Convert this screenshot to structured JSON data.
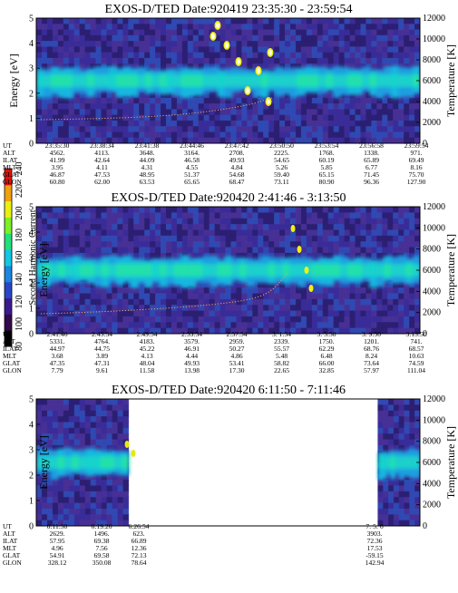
{
  "colorbar": {
    "label": "Second Harmonic Current",
    "ticks": [
      "80",
      "100",
      "120",
      "140",
      "160",
      "180",
      "200",
      "220",
      "240"
    ],
    "colors": [
      "#000000",
      "#330a4a",
      "#3a1a8f",
      "#2946c8",
      "#1a86e0",
      "#10c8e4",
      "#22e07c",
      "#7cf028",
      "#e8f010",
      "#f0a010",
      "#e81008"
    ]
  },
  "chart_data": [
    {
      "type": "heatmap",
      "title": "EXOS-D/TED   Date:920419  23:35:30 - 23:59:54",
      "ylabel": "Energy [eV]",
      "y2label": "Temperature [K]",
      "ylim": [
        0,
        5
      ],
      "y2lim": [
        0,
        12000
      ],
      "yticks": [
        "0",
        "1",
        "2",
        "3",
        "4",
        "5"
      ],
      "y2ticks": [
        "0",
        "2000",
        "4000",
        "6000",
        "8000",
        "10000",
        "12000"
      ],
      "data_extent": [
        0,
        1
      ],
      "table_rows": [
        {
          "label": "UT",
          "values": [
            "23:35:30",
            "23:38:34",
            "23:41:38",
            "23:44:46",
            "23:47:42",
            "23:50:50",
            "23:53:54",
            "23:56:58",
            "23:59:54"
          ]
        },
        {
          "label": "ALT",
          "values": [
            "4562.",
            "4113.",
            "3648.",
            "3164.",
            "2708.",
            "2225.",
            "1768.",
            "1338.",
            "971."
          ]
        },
        {
          "label": "ILAT",
          "values": [
            "41.99",
            "42.64",
            "44.09",
            "46.58",
            "49.93",
            "54.65",
            "60.19",
            "65.89",
            "69.49"
          ]
        },
        {
          "label": "MLT",
          "values": [
            "3.95",
            "4.11",
            "4.31",
            "4.55",
            "4.84",
            "5.26",
            "5.85",
            "6.77",
            "8.16"
          ]
        },
        {
          "label": "GLAT",
          "values": [
            "46.87",
            "47.53",
            "48.95",
            "51.37",
            "54.68",
            "59.40",
            "65.15",
            "71.45",
            "75.70"
          ]
        },
        {
          "label": "GLON",
          "values": [
            "60.80",
            "62.00",
            "63.53",
            "65.65",
            "68.47",
            "73.11",
            "80.90",
            "96.36",
            "127.90"
          ]
        }
      ]
    },
    {
      "type": "heatmap",
      "title": "EXOS-D/TED   Date:920420   2:41:46 - 3:13:50",
      "ylabel": "Energy [eV]",
      "y2label": "Temperature [K]",
      "ylim": [
        0,
        5
      ],
      "y2lim": [
        0,
        12000
      ],
      "yticks": [
        "0",
        "1",
        "2",
        "3",
        "4",
        "5"
      ],
      "y2ticks": [
        "0",
        "2000",
        "4000",
        "6000",
        "8000",
        "10000",
        "12000"
      ],
      "data_extent": [
        0,
        1
      ],
      "table_rows": [
        {
          "label": "UT",
          "values": [
            "2:41:46",
            "2:45:54",
            "2:49:54",
            "2:53:54",
            "2:57:54",
            "3: 1:54",
            "3: 5:50",
            "3: 9:50",
            "3:13:50"
          ]
        },
        {
          "label": "ALT",
          "values": [
            "5331.",
            "4764.",
            "4183.",
            "3579.",
            "2959.",
            "2339.",
            "1750.",
            "1201.",
            "741."
          ]
        },
        {
          "label": "ILAT",
          "values": [
            "44.97",
            "44.75",
            "45.22",
            "46.91",
            "50.27",
            "55.57",
            "62.29",
            "68.76",
            "68.57"
          ]
        },
        {
          "label": "MLT",
          "values": [
            "3.68",
            "3.89",
            "4.13",
            "4.44",
            "4.86",
            "5.48",
            "6.48",
            "8.24",
            "10.63"
          ]
        },
        {
          "label": "GLAT",
          "values": [
            "47.35",
            "47.31",
            "48.04",
            "49.93",
            "53.41",
            "58.82",
            "66.00",
            "73.64",
            "74.59"
          ]
        },
        {
          "label": "GLON",
          "values": [
            "7.79",
            "9.61",
            "11.58",
            "13.98",
            "17.30",
            "22.65",
            "32.85",
            "57.97",
            "111.04"
          ]
        }
      ]
    },
    {
      "type": "heatmap",
      "title": "EXOS-D/TED   Date:920420   6:11:50 - 7:11:46",
      "ylabel": "Energy [eV]",
      "y2label": "Temperature [K]",
      "ylim": [
        0,
        5
      ],
      "y2lim": [
        0,
        12000
      ],
      "yticks": [
        "0",
        "1",
        "2",
        "3",
        "4",
        "5"
      ],
      "y2ticks": [
        "0",
        "2000",
        "4000",
        "6000",
        "8000",
        "10000",
        "12000"
      ],
      "data_extent": [
        0,
        0.24
      ],
      "data_extent2": [
        0.89,
        1
      ],
      "table_rows": [
        {
          "label": "UT",
          "values": [
            "6:11:50",
            "6:19:26",
            "6:26:54",
            "7: 5: 6"
          ]
        },
        {
          "label": "ALT",
          "values": [
            "2629.",
            "1496.",
            "623.",
            "3903."
          ]
        },
        {
          "label": "ILAT",
          "values": [
            "57.95",
            "69.38",
            "66.89",
            "72.36"
          ]
        },
        {
          "label": "MLT",
          "values": [
            "4.96",
            "7.56",
            "12.36",
            "17.53"
          ]
        },
        {
          "label": "GLAT",
          "values": [
            "54.91",
            "69.58",
            "72.13",
            "-59.15"
          ]
        },
        {
          "label": "GLON",
          "values": [
            "328.12",
            "350.08",
            "78.64",
            "142.94"
          ]
        }
      ]
    }
  ]
}
